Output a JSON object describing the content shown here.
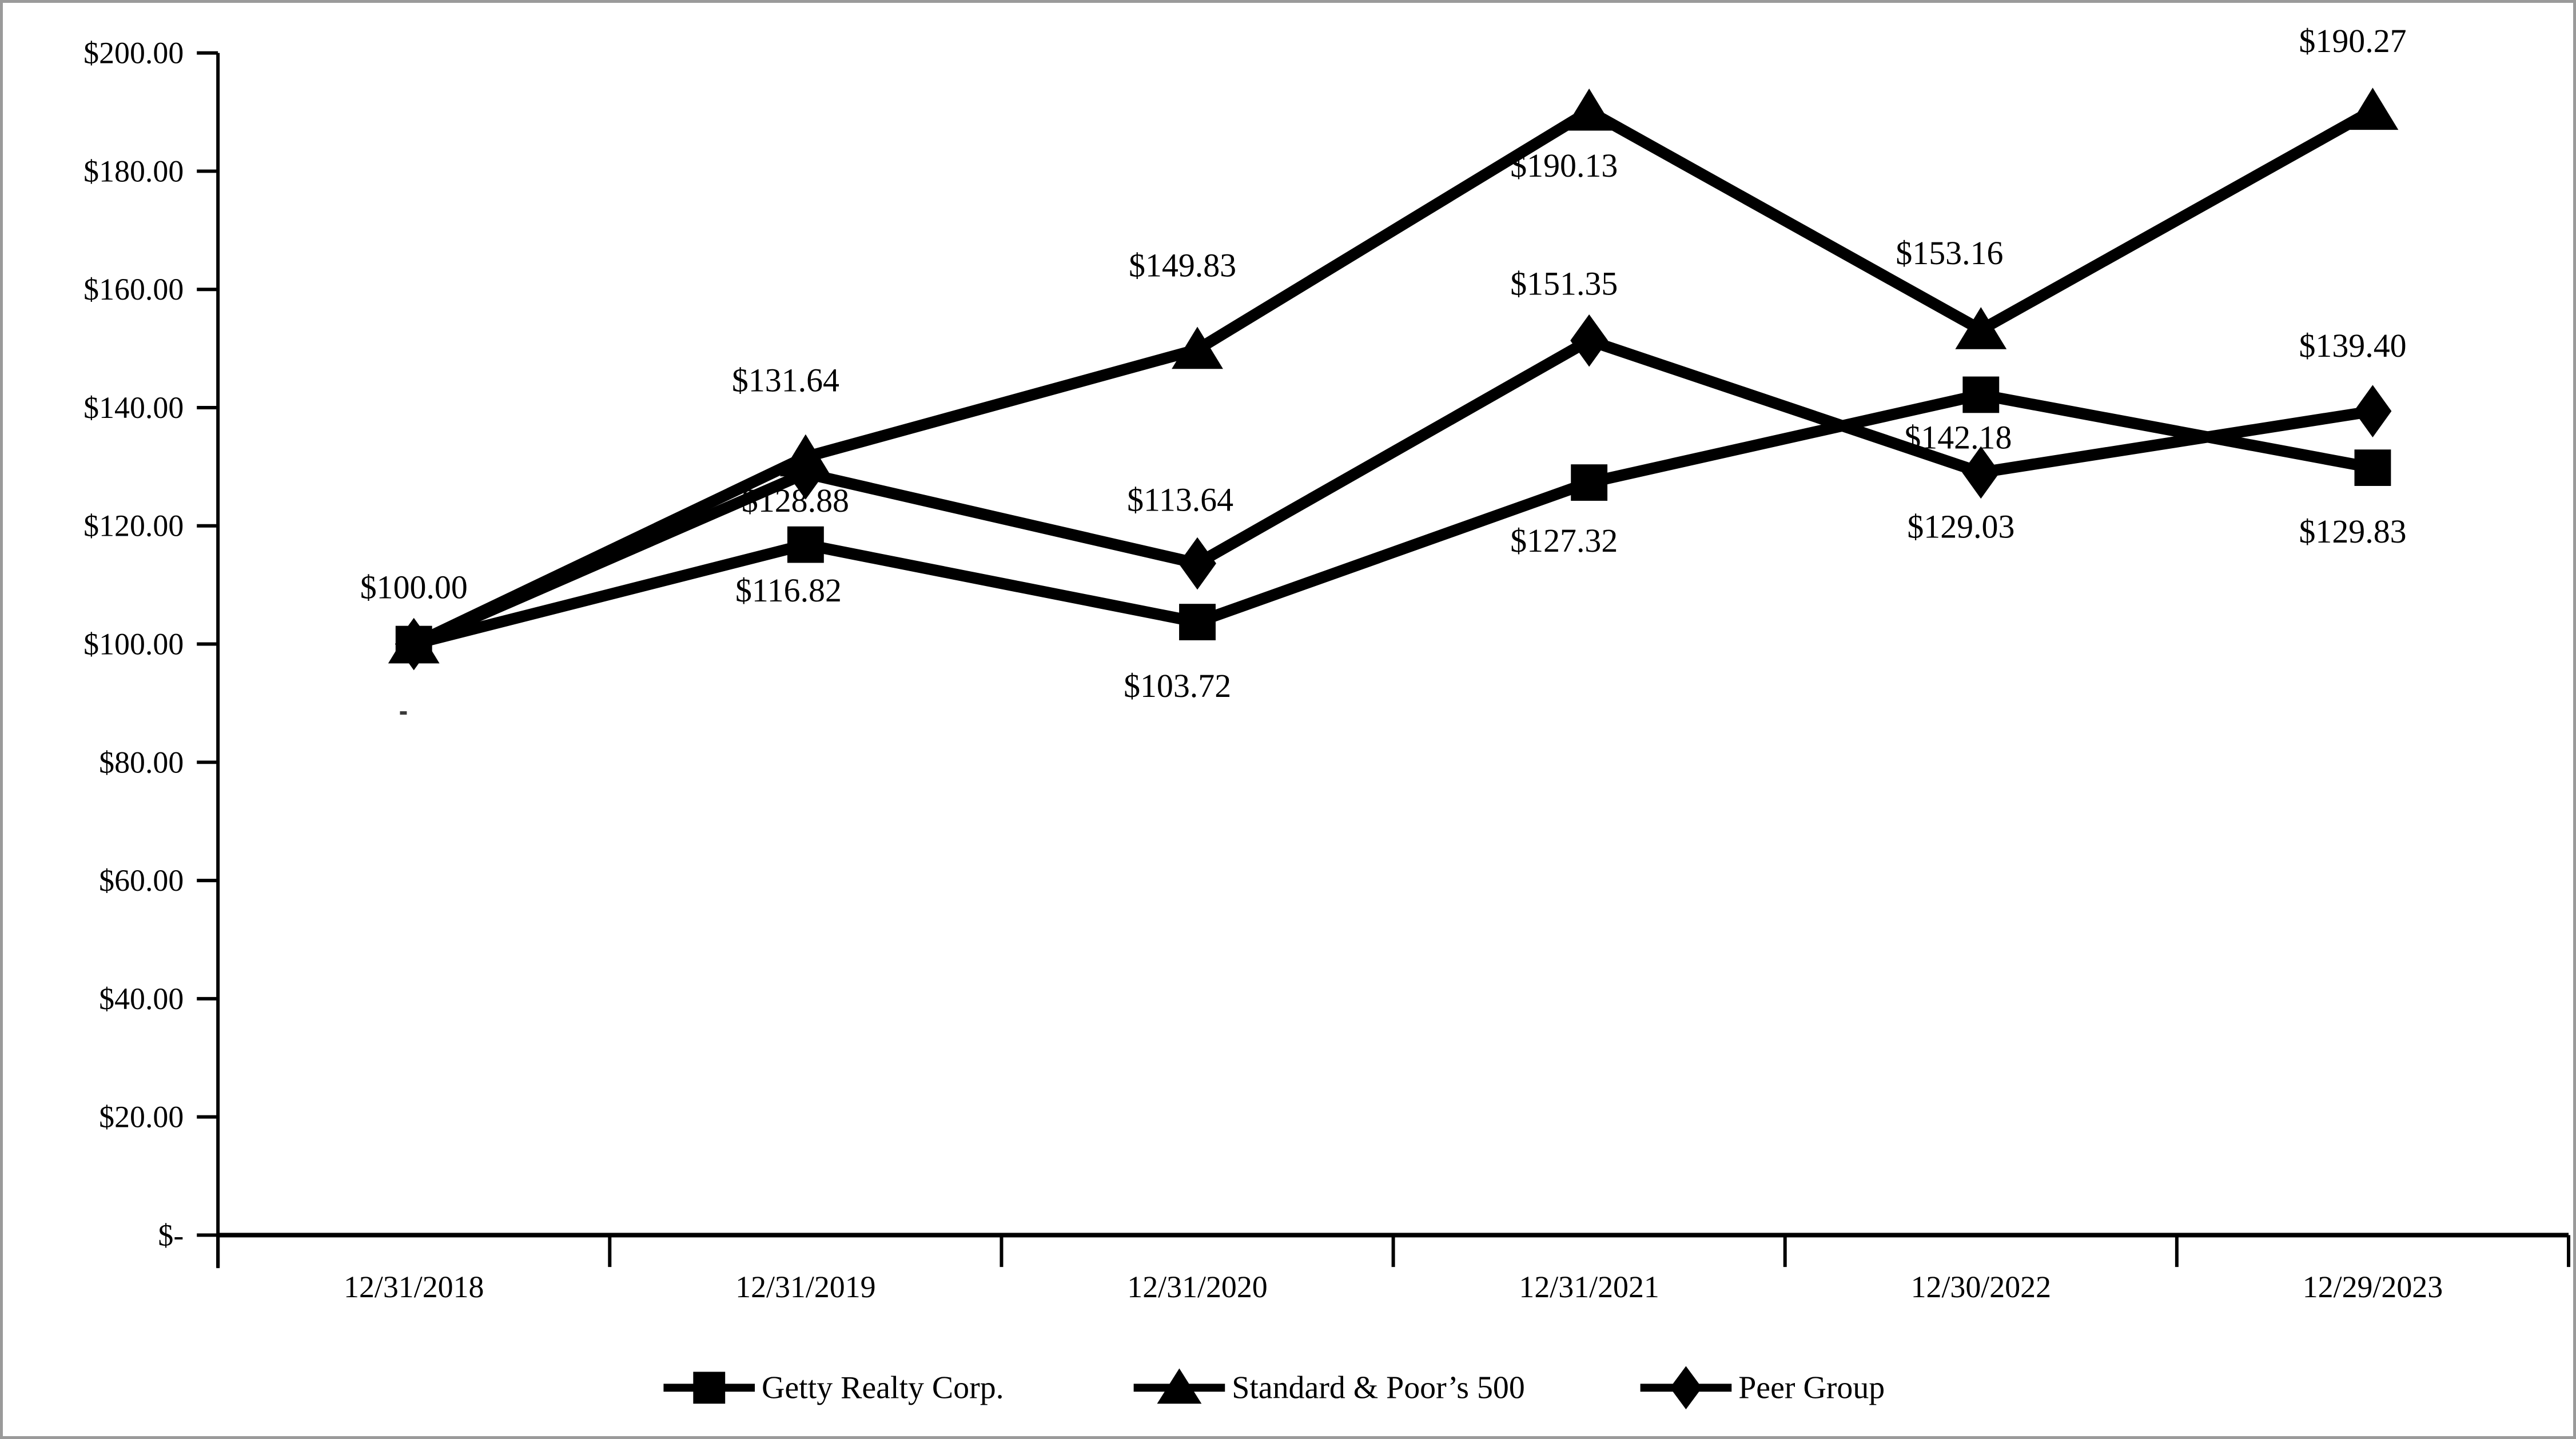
{
  "frame": {
    "border_color": "#9a9a9a",
    "background_color": "#ffffff"
  },
  "chart_data": {
    "type": "line",
    "title": "",
    "xlabel": "",
    "ylabel": "",
    "grid": false,
    "legend_position": "bottom",
    "categories": [
      "12/31/2018",
      "12/31/2019",
      "12/31/2020",
      "12/31/2021",
      "12/30/2022",
      "12/29/2023"
    ],
    "y_axis": {
      "min": 0,
      "max": 200,
      "step": 20,
      "tick_labels": [
        "$-",
        "$20.00",
        "$40.00",
        "$60.00",
        "$80.00",
        "$100.00",
        "$120.00",
        "$140.00",
        "$160.00",
        "$180.00",
        "$200.00"
      ]
    },
    "series": [
      {
        "name": "Getty Realty Corp.",
        "marker": "square",
        "color": "#000000",
        "values": [
          100.0,
          116.82,
          103.72,
          127.32,
          142.18,
          129.83
        ],
        "point_labels": [
          "$100.00",
          "$116.82",
          "$103.72",
          "$127.32",
          "$142.18",
          "$129.83"
        ]
      },
      {
        "name": "Standard & Poor’s 500",
        "marker": "triangle",
        "color": "#000000",
        "values": [
          100.0,
          131.64,
          149.83,
          190.13,
          153.16,
          190.27
        ],
        "point_labels": [
          "",
          "$131.64",
          "$149.83",
          "$190.13",
          "$153.16",
          "$190.27"
        ]
      },
      {
        "name": "Peer Group",
        "marker": "diamond",
        "color": "#000000",
        "values": [
          100.0,
          128.88,
          113.64,
          151.35,
          129.03,
          139.4
        ],
        "point_labels": [
          "",
          "$128.88",
          "$113.64",
          "$151.35",
          "$129.03",
          "$139.40"
        ]
      }
    ],
    "legend": [
      "Getty Realty Corp.",
      "Standard & Poor’s 500",
      "Peer Group"
    ]
  }
}
